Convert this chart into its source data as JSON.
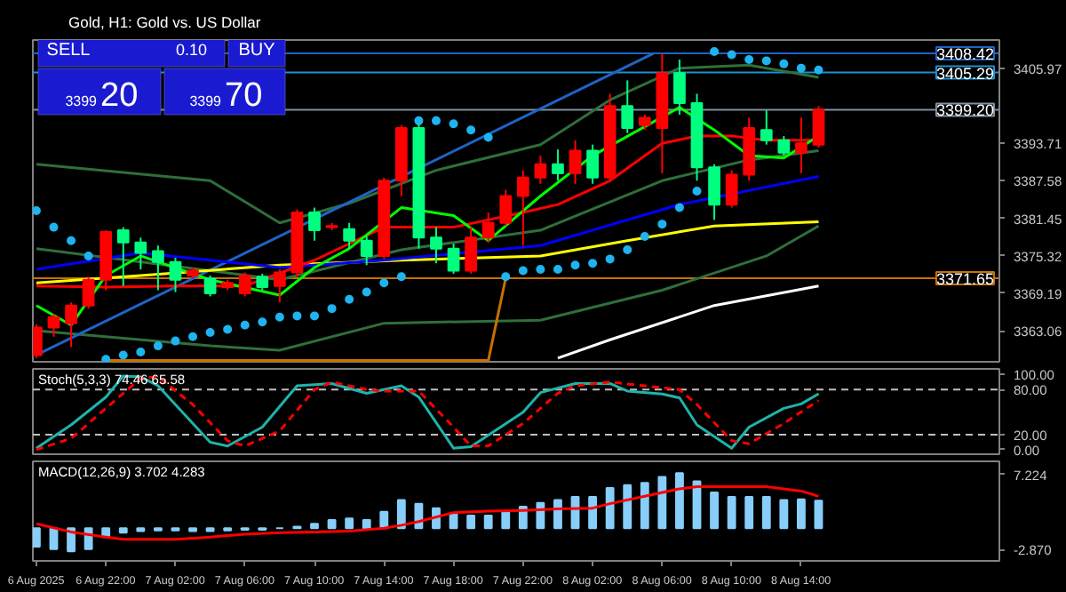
{
  "chart_data": [
    {
      "type": "candlestick",
      "title": "Gold, H1:  Gold vs. US Dollar",
      "annotations": [
        "SELL",
        "0.10",
        "BUY",
        "3399",
        "20",
        "3399",
        "70"
      ],
      "x": [
        "2025-08-06T18:00",
        "2025-08-06T19:00",
        "2025-08-06T20:00",
        "2025-08-06T21:00",
        "2025-08-06T22:00",
        "2025-08-06T23:00",
        "2025-08-07T00:00",
        "2025-08-07T01:00",
        "2025-08-07T02:00",
        "2025-08-07T03:00",
        "2025-08-07T04:00",
        "2025-08-07T05:00",
        "2025-08-07T06:00",
        "2025-08-07T07:00",
        "2025-08-07T08:00",
        "2025-08-07T09:00",
        "2025-08-07T10:00",
        "2025-08-07T11:00",
        "2025-08-07T12:00",
        "2025-08-07T13:00",
        "2025-08-07T14:00",
        "2025-08-07T15:00",
        "2025-08-07T16:00",
        "2025-08-07T17:00",
        "2025-08-07T18:00",
        "2025-08-07T19:00",
        "2025-08-07T20:00",
        "2025-08-07T21:00",
        "2025-08-07T22:00",
        "2025-08-07T23:00",
        "2025-08-08T00:00",
        "2025-08-08T01:00",
        "2025-08-08T02:00",
        "2025-08-08T03:00",
        "2025-08-08T04:00",
        "2025-08-08T05:00",
        "2025-08-08T06:00",
        "2025-08-08T07:00",
        "2025-08-08T08:00",
        "2025-08-08T09:00",
        "2025-08-08T10:00",
        "2025-08-08T11:00",
        "2025-08-08T12:00",
        "2025-08-08T13:00",
        "2025-08-08T14:00",
        "2025-08-08T15:00"
      ],
      "ohlc": [
        [
          3359.1,
          3364.1,
          3358.6,
          3363.6
        ],
        [
          3363.6,
          3365.8,
          3362.1,
          3365.3
        ],
        [
          3364.3,
          3367.7,
          3360.4,
          3367.2
        ],
        [
          3367.2,
          3371.9,
          3366.7,
          3371.4
        ],
        [
          3371.4,
          3379.5,
          3369.7,
          3379.2
        ],
        [
          3379.5,
          3380.0,
          3370.4,
          3377.5
        ],
        [
          3377.5,
          3378.3,
          3373.1,
          3375.8
        ],
        [
          3376.1,
          3377.0,
          3369.7,
          3374.3
        ],
        [
          3374.3,
          3375.0,
          3369.4,
          3371.4
        ],
        [
          3372.1,
          3373.4,
          3371.6,
          3372.9
        ],
        [
          3371.6,
          3372.1,
          3368.7,
          3369.2
        ],
        [
          3370.2,
          3371.4,
          3369.7,
          3370.9
        ],
        [
          3369.2,
          3372.6,
          3368.7,
          3372.1
        ],
        [
          3371.9,
          3372.4,
          3369.7,
          3370.2
        ],
        [
          3370.4,
          3373.1,
          3367.7,
          3372.6
        ],
        [
          3372.6,
          3382.9,
          3371.9,
          3382.4
        ],
        [
          3382.4,
          3383.2,
          3377.8,
          3379.5
        ],
        [
          3380.0,
          3380.7,
          3379.5,
          3380.2
        ],
        [
          3379.7,
          3380.7,
          3376.5,
          3377.8
        ],
        [
          3377.8,
          3378.5,
          3373.8,
          3375.3
        ],
        [
          3375.3,
          3388.1,
          3374.8,
          3387.6
        ],
        [
          3387.6,
          3396.7,
          3385.1,
          3396.2
        ],
        [
          3396.2,
          3396.9,
          3376.5,
          3378.3
        ],
        [
          3378.3,
          3380.0,
          3374.1,
          3376.5
        ],
        [
          3376.5,
          3377.3,
          3372.4,
          3372.9
        ],
        [
          3372.9,
          3380.0,
          3372.4,
          3378.3
        ],
        [
          3378.3,
          3382.4,
          3377.5,
          3380.7
        ],
        [
          3380.7,
          3386.1,
          3380.2,
          3385.1
        ],
        [
          3385.1,
          3389.3,
          3377.0,
          3388.1
        ],
        [
          3388.1,
          3391.7,
          3387.1,
          3390.3
        ],
        [
          3390.3,
          3392.7,
          3387.6,
          3388.8
        ],
        [
          3388.8,
          3394.2,
          3387.1,
          3392.5
        ],
        [
          3392.5,
          3393.5,
          3387.1,
          3388.1
        ],
        [
          3388.1,
          3401.8,
          3387.6,
          3399.8
        ],
        [
          3399.8,
          3404.0,
          3395.4,
          3396.2
        ],
        [
          3396.7,
          3398.4,
          3395.9,
          3397.9
        ],
        [
          3396.2,
          3408.4,
          3388.8,
          3405.2
        ],
        [
          3405.2,
          3407.4,
          3398.4,
          3400.3
        ],
        [
          3400.3,
          3401.8,
          3387.6,
          3389.8
        ],
        [
          3389.8,
          3390.3,
          3381.2,
          3383.7
        ],
        [
          3383.7,
          3389.3,
          3383.2,
          3388.6
        ],
        [
          3388.6,
          3397.9,
          3387.6,
          3396.2
        ],
        [
          3395.9,
          3399.1,
          3393.5,
          3394.2
        ],
        [
          3394.2,
          3394.9,
          3391.7,
          3392.2
        ],
        [
          3392.2,
          3397.9,
          3388.8,
          3393.7
        ],
        [
          3393.5,
          3399.8,
          3393.0,
          3399.2
        ]
      ],
      "colors": [
        "#ff0000",
        "#ff0000",
        "#ff0000",
        "#ff0000",
        "#ff0000",
        "#00ff7f",
        "#00ff7f",
        "#00ff7f",
        "#00ff7f",
        "#ff0000",
        "#00ff7f",
        "#ff0000",
        "#ff0000",
        "#00ff7f",
        "#ff0000",
        "#ff0000",
        "#00ff7f",
        "#ff0000",
        "#00ff7f",
        "#00ff7f",
        "#ff0000",
        "#ff0000",
        "#00ff7f",
        "#00ff7f",
        "#00ff7f",
        "#ff0000",
        "#ff0000",
        "#ff0000",
        "#ff0000",
        "#ff0000",
        "#00ff7f",
        "#ff0000",
        "#00ff7f",
        "#ff0000",
        "#00ff7f",
        "#ff0000",
        "#ff0000",
        "#00ff7f",
        "#00ff7f",
        "#00ff7f",
        "#ff0000",
        "#ff0000",
        "#00ff7f",
        "#00ff7f",
        "#ff0000",
        "#ff0000"
      ],
      "series": [
        {
          "type": "line",
          "color": "#2f6f3a",
          "x": [
            "2025-08-06T18:00",
            "2025-08-07T04:00",
            "2025-08-07T08:00",
            "2025-08-07T12:00",
            "2025-08-07T17:00",
            "2025-08-07T23:00",
            "2025-08-08T03:00",
            "2025-08-08T07:00",
            "2025-08-08T11:00",
            "2025-08-08T15:00"
          ],
          "values": [
            3390.3,
            3387.6,
            3380.7,
            3383.9,
            3389.3,
            3393.5,
            3400.8,
            3406.0,
            3406.5,
            3404.5
          ]
        },
        {
          "type": "line",
          "color": "#2f6f3a",
          "x": [
            "2025-08-06T18:00",
            "2025-08-07T04:00",
            "2025-08-07T08:00",
            "2025-08-07T15:00",
            "2025-08-07T23:00",
            "2025-08-08T06:00",
            "2025-08-08T11:00",
            "2025-08-08T15:00"
          ],
          "values": [
            3376.5,
            3372.9,
            3371.4,
            3376.3,
            3379.5,
            3387.6,
            3391.0,
            3392.5
          ]
        },
        {
          "type": "line",
          "color": "#2f6f3a",
          "x": [
            "2025-08-06T18:00",
            "2025-08-07T04:00",
            "2025-08-07T08:00",
            "2025-08-07T14:00",
            "2025-08-07T23:00",
            "2025-08-08T06:00",
            "2025-08-08T12:00",
            "2025-08-08T15:00"
          ],
          "values": [
            3363.1,
            3360.6,
            3359.9,
            3364.3,
            3364.8,
            3369.7,
            3375.3,
            3380.2
          ]
        },
        {
          "type": "line",
          "color": "#c87000",
          "x": [
            "2025-08-06T22:00",
            "2025-08-07T20:00",
            "2025-08-07T21:00"
          ],
          "values": [
            3358.2,
            3358.2,
            3371.65
          ]
        },
        {
          "type": "line",
          "color": "#1e64c8",
          "x": [
            "2025-08-06T18:00",
            "2025-08-08T05:30"
          ],
          "values": [
            3359.1,
            3408.4
          ]
        },
        {
          "type": "line",
          "color": "#ffffff",
          "x": [
            "2025-08-08T00:00",
            "2025-08-08T03:00",
            "2025-08-08T09:00",
            "2025-08-08T15:00"
          ],
          "values": [
            3358.6,
            3361.6,
            3367.2,
            3370.4
          ]
        },
        {
          "type": "line",
          "color": "#ffff00",
          "x": [
            "2025-08-06T18:00",
            "2025-08-07T00:00",
            "2025-08-07T08:00",
            "2025-08-07T15:00",
            "2025-08-07T23:00",
            "2025-08-08T04:00",
            "2025-08-08T09:00",
            "2025-08-08T15:00"
          ],
          "values": [
            3370.9,
            3372.1,
            3373.8,
            3374.6,
            3375.3,
            3377.8,
            3380.2,
            3380.9
          ]
        },
        {
          "type": "line",
          "color": "#0000ff",
          "x": [
            "2025-08-06T18:00",
            "2025-08-07T00:00",
            "2025-08-07T04:00",
            "2025-08-07T08:00",
            "2025-08-07T14:00",
            "2025-08-07T23:00",
            "2025-08-08T07:00",
            "2025-08-08T15:00"
          ],
          "values": [
            3373.1,
            3375.8,
            3374.6,
            3373.4,
            3374.6,
            3377.0,
            3383.7,
            3388.3
          ]
        },
        {
          "type": "line",
          "color": "#ff0000",
          "x": [
            "2025-08-06T18:00",
            "2025-08-06T22:00",
            "2025-08-07T02:00",
            "2025-08-07T06:00",
            "2025-08-07T10:00",
            "2025-08-07T14:00",
            "2025-08-07T18:00",
            "2025-08-07T22:00",
            "2025-08-08T00:00",
            "2025-08-08T03:00",
            "2025-08-08T06:00",
            "2025-08-08T08:00",
            "2025-08-08T10:00",
            "2025-08-08T12:00",
            "2025-08-08T15:00"
          ],
          "values": [
            3370.4,
            3370.2,
            3370.4,
            3370.4,
            3374.6,
            3380.0,
            3380.0,
            3382.4,
            3383.7,
            3387.6,
            3393.7,
            3394.9,
            3394.9,
            3394.2,
            3394.2
          ]
        },
        {
          "type": "line",
          "color": "#00ff00",
          "x": [
            "2025-08-06T18:00",
            "2025-08-06T20:00",
            "2025-08-06T22:00",
            "2025-08-07T00:00",
            "2025-08-07T04:00",
            "2025-08-07T08:00",
            "2025-08-07T10:00",
            "2025-08-07T12:00",
            "2025-08-07T15:00",
            "2025-08-07T18:00",
            "2025-08-07T20:00",
            "2025-08-07T23:00",
            "2025-08-08T02:00",
            "2025-08-08T07:00",
            "2025-08-08T09:00",
            "2025-08-08T11:00",
            "2025-08-08T13:00",
            "2025-08-08T15:00"
          ],
          "values": [
            3367.2,
            3364.0,
            3372.1,
            3375.3,
            3371.4,
            3368.9,
            3373.4,
            3376.5,
            3383.2,
            3381.9,
            3377.8,
            3385.1,
            3391.7,
            3399.6,
            3395.9,
            3391.7,
            3391.3,
            3394.9
          ]
        },
        {
          "type": "scatter",
          "marker": "circle",
          "color": "#1eb4f0",
          "x": [
            "2025-08-06T18:00",
            "2025-08-06T19:00",
            "2025-08-06T20:00",
            "2025-08-06T21:00",
            "2025-08-06T22:00",
            "2025-08-06T23:00",
            "2025-08-07T00:00",
            "2025-08-07T01:00",
            "2025-08-07T02:00",
            "2025-08-07T03:00",
            "2025-08-07T04:00",
            "2025-08-07T05:00",
            "2025-08-07T06:00",
            "2025-08-07T07:00",
            "2025-08-07T08:00",
            "2025-08-07T09:00",
            "2025-08-07T10:00",
            "2025-08-07T11:00",
            "2025-08-07T12:00",
            "2025-08-07T13:00",
            "2025-08-07T14:00",
            "2025-08-07T15:00",
            "2025-08-07T16:00",
            "2025-08-07T17:00",
            "2025-08-07T18:00",
            "2025-08-07T19:00",
            "2025-08-07T20:00",
            "2025-08-07T21:00",
            "2025-08-07T22:00",
            "2025-08-07T23:00",
            "2025-08-08T00:00",
            "2025-08-08T01:00",
            "2025-08-08T02:00",
            "2025-08-08T03:00",
            "2025-08-08T04:00",
            "2025-08-08T05:00",
            "2025-08-08T06:00",
            "2025-08-08T07:00",
            "2025-08-08T08:00",
            "2025-08-08T09:00",
            "2025-08-08T10:00",
            "2025-08-08T11:00",
            "2025-08-08T12:00",
            "2025-08-08T13:00",
            "2025-08-08T14:00",
            "2025-08-08T15:00"
          ],
          "values": [
            3382.7,
            3380.0,
            3377.8,
            3375.3,
            3358.4,
            3359.1,
            3359.6,
            3360.6,
            3361.4,
            3362.1,
            3362.8,
            3363.3,
            3364.0,
            3364.5,
            3365.3,
            3365.5,
            3365.5,
            3366.7,
            3368.2,
            3369.4,
            3370.9,
            3371.9,
            3397.4,
            3397.4,
            3396.9,
            3395.9,
            3394.7,
            3371.9,
            3372.9,
            3373.1,
            3373.1,
            3373.8,
            3374.1,
            3374.8,
            3376.3,
            3378.5,
            3380.5,
            3383.2,
            3385.9,
            3408.7,
            3408.2,
            3407.4,
            3407.2,
            3406.7,
            3406.0,
            3405.7
          ]
        }
      ],
      "ref_lines": [
        {
          "axis": "y",
          "value": 3399.2,
          "label": "3399.20",
          "color": "#8090a0"
        },
        {
          "axis": "y",
          "value": 3408.42,
          "label": "3408.42",
          "color": "#1e64c8"
        },
        {
          "axis": "y",
          "value": 3405.29,
          "label": "3405.29",
          "color": "#1e90d0"
        },
        {
          "axis": "y",
          "value": 3371.65,
          "label": "3371.65",
          "color": "#c87000"
        }
      ],
      "xlim": [
        "2025-08-06T17:48",
        "2025-08-09T01:24"
      ],
      "ylim": [
        3358.0,
        3410.6
      ],
      "yticks": [
        3405.97,
        3393.71,
        3387.58,
        3381.45,
        3375.32,
        3369.19,
        3363.06
      ],
      "tick_labels": "y"
    },
    {
      "type": "line",
      "title": "Stoch(5,3,3) 74.46 65.58",
      "series": [
        {
          "color": "#20b2aa",
          "x": [
            "2025-08-06T18:00",
            "2025-08-06T20:00",
            "2025-08-06T22:00",
            "2025-08-06T23:00",
            "2025-08-07T00:00",
            "2025-08-07T01:00",
            "2025-08-07T04:00",
            "2025-08-07T05:00",
            "2025-08-07T07:00",
            "2025-08-07T09:00",
            "2025-08-07T11:00",
            "2025-08-07T13:00",
            "2025-08-07T15:00",
            "2025-08-07T16:00",
            "2025-08-07T18:00",
            "2025-08-07T19:00",
            "2025-08-07T22:00",
            "2025-08-07T23:00",
            "2025-08-08T01:00",
            "2025-08-08T03:00",
            "2025-08-08T04:00",
            "2025-08-08T06:00",
            "2025-08-08T07:00",
            "2025-08-08T08:00",
            "2025-08-08T10:00",
            "2025-08-08T11:00",
            "2025-08-08T13:00",
            "2025-08-08T14:00",
            "2025-08-08T15:00"
          ],
          "values": [
            2,
            33,
            70,
            98,
            97,
            85,
            10,
            5,
            30,
            85,
            88,
            75,
            85,
            70,
            2,
            4,
            50,
            76,
            88,
            88,
            78,
            74,
            69,
            33,
            2,
            30,
            55,
            61,
            74.46
          ]
        },
        {
          "color": "#ff0000",
          "line_style": "dashed",
          "x": [
            "2025-08-06T18:00",
            "2025-08-06T20:00",
            "2025-08-06T22:00",
            "2025-08-07T00:00",
            "2025-08-07T01:00",
            "2025-08-07T03:00",
            "2025-08-07T05:00",
            "2025-08-07T06:00",
            "2025-08-07T08:00",
            "2025-08-07T10:00",
            "2025-08-07T11:00",
            "2025-08-07T13:00",
            "2025-08-07T14:00",
            "2025-08-07T16:00",
            "2025-08-07T18:00",
            "2025-08-07T19:00",
            "2025-08-07T20:00",
            "2025-08-07T22:00",
            "2025-08-08T00:00",
            "2025-08-08T01:00",
            "2025-08-08T03:00",
            "2025-08-08T05:00",
            "2025-08-08T07:00",
            "2025-08-08T08:00",
            "2025-08-08T10:00",
            "2025-08-08T11:00",
            "2025-08-08T13:00",
            "2025-08-08T15:00"
          ],
          "values": [
            0,
            15,
            55,
            95,
            97,
            60,
            12,
            5,
            25,
            80,
            90,
            80,
            78,
            78,
            30,
            5,
            5,
            35,
            75,
            85,
            90,
            85,
            80,
            60,
            12,
            8,
            35,
            65.58
          ]
        }
      ],
      "ref_lines": [
        {
          "axis": "y",
          "value": 80,
          "color": "#c0c0c0",
          "line_style": "dashed"
        },
        {
          "axis": "y",
          "value": 20,
          "color": "#c0c0c0",
          "line_style": "dashed"
        }
      ],
      "xlim": [
        "2025-08-06T17:48",
        "2025-08-09T01:24"
      ],
      "ylim": [
        -6,
        107.5
      ],
      "yticks": [
        {
          "value": 100,
          "label": "100.00"
        },
        {
          "value": 80,
          "label": "80.00"
        },
        {
          "value": 20,
          "label": "20.00"
        },
        {
          "value": 0,
          "label": "0.00"
        }
      ],
      "tick_labels": "y"
    },
    {
      "type": "bar",
      "title": "MACD(12,26,9) 3.702 4.283",
      "x": [
        "2025-08-06T18:00",
        "2025-08-06T19:00",
        "2025-08-06T20:00",
        "2025-08-06T21:00",
        "2025-08-06T22:00",
        "2025-08-06T23:00",
        "2025-08-07T00:00",
        "2025-08-07T01:00",
        "2025-08-07T02:00",
        "2025-08-07T03:00",
        "2025-08-07T04:00",
        "2025-08-07T05:00",
        "2025-08-07T06:00",
        "2025-08-07T07:00",
        "2025-08-07T08:00",
        "2025-08-07T09:00",
        "2025-08-07T10:00",
        "2025-08-07T11:00",
        "2025-08-07T12:00",
        "2025-08-07T13:00",
        "2025-08-07T14:00",
        "2025-08-07T15:00",
        "2025-08-07T16:00",
        "2025-08-07T17:00",
        "2025-08-07T18:00",
        "2025-08-07T19:00",
        "2025-08-07T20:00",
        "2025-08-07T21:00",
        "2025-08-07T22:00",
        "2025-08-07T23:00",
        "2025-08-08T00:00",
        "2025-08-08T01:00",
        "2025-08-08T02:00",
        "2025-08-08T03:00",
        "2025-08-08T04:00",
        "2025-08-08T05:00",
        "2025-08-08T06:00",
        "2025-08-08T07:00",
        "2025-08-08T08:00",
        "2025-08-08T09:00",
        "2025-08-08T10:00",
        "2025-08-08T11:00",
        "2025-08-08T12:00",
        "2025-08-08T13:00",
        "2025-08-08T14:00",
        "2025-08-08T15:00"
      ],
      "series": [
        {
          "color": "#87cefa",
          "values": [
            -2.5,
            -2.8,
            -3.1,
            -2.8,
            -1.2,
            -0.6,
            -0.4,
            -0.3,
            -0.3,
            -0.4,
            -0.4,
            -0.3,
            -0.2,
            -0.2,
            0.0,
            0.2,
            0.6,
            1.1,
            1.3,
            1.1,
            2.2,
            3.8,
            3.3,
            2.7,
            1.9,
            1.7,
            1.7,
            2.2,
            2.9,
            3.4,
            3.8,
            4.2,
            4.2,
            5.4,
            5.8,
            6.1,
            6.9,
            7.4,
            6.3,
            4.8,
            4.2,
            4.2,
            4.2,
            3.8,
            3.9,
            3.702
          ]
        },
        {
          "type": "line",
          "color": "#ff0000",
          "x": [
            "2025-08-06T18:00",
            "2025-08-06T20:00",
            "2025-08-06T22:00",
            "2025-08-06T23:00",
            "2025-08-07T02:00",
            "2025-08-07T04:00",
            "2025-08-07T06:00",
            "2025-08-07T08:00",
            "2025-08-07T10:00",
            "2025-08-07T12:00",
            "2025-08-07T14:00",
            "2025-08-07T15:00",
            "2025-08-07T16:00",
            "2025-08-07T18:00",
            "2025-08-07T20:00",
            "2025-08-07T22:00",
            "2025-08-08T00:00",
            "2025-08-08T02:00",
            "2025-08-08T03:00",
            "2025-08-08T05:00",
            "2025-08-08T07:00",
            "2025-08-08T08:00",
            "2025-08-08T10:00",
            "2025-08-08T12:00",
            "2025-08-08T13:00",
            "2025-08-08T14:00",
            "2025-08-08T15:00"
          ],
          "values": [
            0.6,
            -0.5,
            -1.2,
            -1.5,
            -1.5,
            -1.2,
            -0.8,
            -0.6,
            -0.5,
            -0.4,
            0.0,
            0.4,
            0.9,
            2.1,
            2.3,
            2.4,
            2.6,
            2.7,
            3.3,
            4.3,
            5.3,
            5.6,
            5.6,
            5.6,
            5.3,
            5.0,
            4.283
          ]
        }
      ],
      "xlim": [
        "2025-08-06T17:48",
        "2025-08-09T01:24"
      ],
      "xticks": [
        {
          "value": "2025-08-06T18:00",
          "label": "6 Aug 2025"
        },
        {
          "value": "2025-08-06T22:00",
          "label": "6 Aug 22:00"
        },
        {
          "value": "2025-08-07T02:00",
          "label": "7 Aug 02:00"
        },
        {
          "value": "2025-08-07T06:00",
          "label": "7 Aug 06:00"
        },
        {
          "value": "2025-08-07T10:00",
          "label": "7 Aug 10:00"
        },
        {
          "value": "2025-08-07T14:00",
          "label": "7 Aug 14:00"
        },
        {
          "value": "2025-08-07T18:00",
          "label": "7 Aug 18:00"
        },
        {
          "value": "2025-08-07T22:00",
          "label": "7 Aug 22:00"
        },
        {
          "value": "2025-08-08T02:00",
          "label": "8 Aug 02:00"
        },
        {
          "value": "2025-08-08T06:00",
          "label": "8 Aug 06:00"
        },
        {
          "value": "2025-08-08T10:00",
          "label": "8 Aug 10:00"
        },
        {
          "value": "2025-08-08T14:00",
          "label": "8 Aug 14:00"
        }
      ],
      "ylim": [
        -4.4,
        9.0
      ],
      "yticks": [
        7.224,
        {
          "value": -2.87,
          "label": "-2.870"
        }
      ]
    }
  ]
}
